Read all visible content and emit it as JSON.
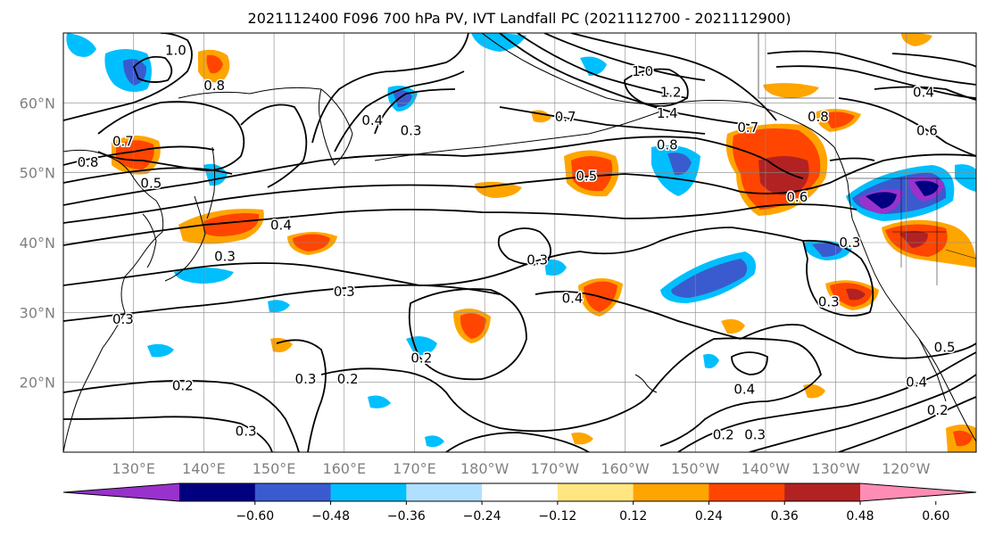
{
  "title": "2021112400 F096 700 hPa PV, IVT Landfall PC (2021112700 - 2021112900)",
  "lat_labels": [
    {
      "lat": 60,
      "label": "60°N"
    },
    {
      "lat": 50,
      "label": "50°N"
    },
    {
      "lat": 40,
      "label": "40°N"
    },
    {
      "lat": 30,
      "label": "30°N"
    },
    {
      "lat": 20,
      "label": "20°N"
    }
  ],
  "lon_labels": [
    {
      "lon": 130,
      "label": "130°E"
    },
    {
      "lon": 140,
      "label": "140°E"
    },
    {
      "lon": 150,
      "label": "150°E"
    },
    {
      "lon": 160,
      "label": "160°E"
    },
    {
      "lon": 170,
      "label": "170°E"
    },
    {
      "lon": 180,
      "label": "180°W"
    },
    {
      "lon": 190,
      "label": "170°W"
    },
    {
      "lon": 200,
      "label": "160°W"
    },
    {
      "lon": 210,
      "label": "150°W"
    },
    {
      "lon": 220,
      "label": "140°W"
    },
    {
      "lon": 230,
      "label": "130°W"
    },
    {
      "lon": 240,
      "label": "120°W"
    }
  ],
  "map_extent": {
    "lon_min": 120,
    "lon_max": 250,
    "lat_min": 10,
    "lat_max": 70
  },
  "colorbar": {
    "colors": [
      "#9932cc",
      "#000080",
      "#3a5bcf",
      "#00bfff",
      "#b0e0ff",
      "#ffffff",
      "#ffe680",
      "#ffa500",
      "#ff4500",
      "#b22222",
      "#ff8cb4"
    ],
    "ticks": [
      "−0.60",
      "−0.48",
      "−0.36",
      "−0.24",
      "−0.12",
      "0.12",
      "0.24",
      "0.36",
      "0.48",
      "0.60"
    ]
  },
  "contour_labels": [
    {
      "text": "1.0",
      "lon": 136.0,
      "lat": 67.5
    },
    {
      "text": "0.8",
      "lon": 141.5,
      "lat": 62.5
    },
    {
      "text": "0.7",
      "lon": 128.5,
      "lat": 54.5
    },
    {
      "text": "0.8",
      "lon": 123.5,
      "lat": 51.5
    },
    {
      "text": "0.5",
      "lon": 132.5,
      "lat": 48.5
    },
    {
      "text": "0.4",
      "lon": 164.0,
      "lat": 57.5
    },
    {
      "text": "0.3",
      "lon": 169.5,
      "lat": 56.0
    },
    {
      "text": "0.4",
      "lon": 151.0,
      "lat": 42.5
    },
    {
      "text": "0.3",
      "lon": 143.0,
      "lat": 38.0
    },
    {
      "text": "0.3",
      "lon": 128.5,
      "lat": 29.0
    },
    {
      "text": "0.3",
      "lon": 160.0,
      "lat": 33.0
    },
    {
      "text": "0.2",
      "lon": 137.0,
      "lat": 19.5
    },
    {
      "text": "0.3",
      "lon": 146.0,
      "lat": 13.0
    },
    {
      "text": "0.3",
      "lon": 154.5,
      "lat": 20.5
    },
    {
      "text": "0.2",
      "lon": 160.5,
      "lat": 20.5
    },
    {
      "text": "0.2",
      "lon": 171.0,
      "lat": 23.5
    },
    {
      "text": "0.5",
      "lon": 194.5,
      "lat": 49.5
    },
    {
      "text": "0.3",
      "lon": 187.5,
      "lat": 37.5
    },
    {
      "text": "0.4",
      "lon": 192.5,
      "lat": 32.0
    },
    {
      "text": "0.7",
      "lon": 191.5,
      "lat": 58.0
    },
    {
      "text": "1.0",
      "lon": 202.5,
      "lat": 64.5
    },
    {
      "text": "1.2",
      "lon": 206.5,
      "lat": 61.5
    },
    {
      "text": "1.4",
      "lon": 206.0,
      "lat": 58.5
    },
    {
      "text": "0.8",
      "lon": 206.0,
      "lat": 54.0
    },
    {
      "text": "0.7",
      "lon": 217.5,
      "lat": 56.5
    },
    {
      "text": "0.8",
      "lon": 227.5,
      "lat": 58.0
    },
    {
      "text": "0.6",
      "lon": 224.5,
      "lat": 46.5
    },
    {
      "text": "0.6",
      "lon": 243.0,
      "lat": 56.0
    },
    {
      "text": "0.4",
      "lon": 242.5,
      "lat": 61.5
    },
    {
      "text": "0.3",
      "lon": 232.0,
      "lat": 40.0
    },
    {
      "text": "0.3",
      "lon": 229.0,
      "lat": 31.5
    },
    {
      "text": "0.4",
      "lon": 217.0,
      "lat": 19.0
    },
    {
      "text": "0.2",
      "lon": 214.0,
      "lat": 12.5
    },
    {
      "text": "0.3",
      "lon": 218.5,
      "lat": 12.5
    },
    {
      "text": "0.5",
      "lon": 245.5,
      "lat": 25.0
    },
    {
      "text": "0.4",
      "lon": 241.5,
      "lat": 20.0
    },
    {
      "text": "0.2",
      "lon": 244.5,
      "lat": 16.0
    }
  ],
  "colors": {
    "contour": "#000000",
    "grid": "#888888",
    "coast": "#000000",
    "tick_label": "#808080"
  }
}
